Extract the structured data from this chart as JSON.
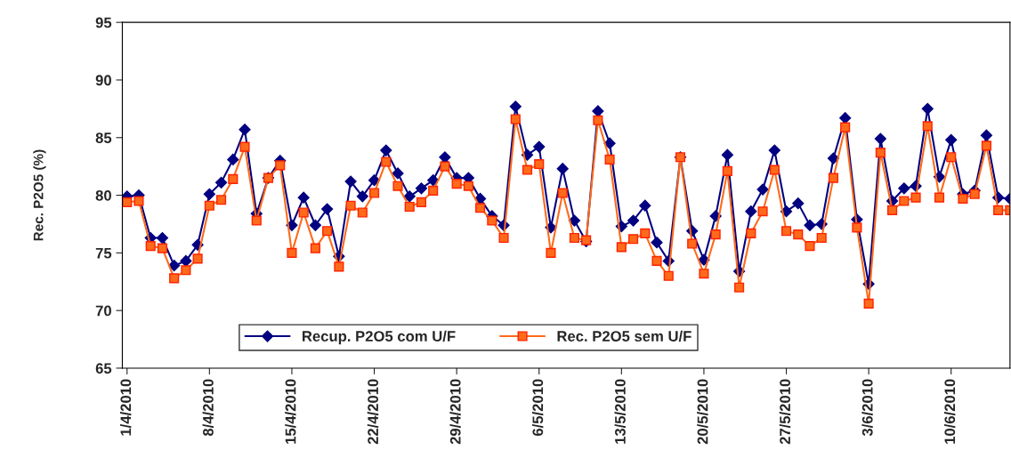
{
  "chart_data": {
    "type": "line",
    "ylabel": "Rec. P2O5 (%)",
    "categories": [
      "1/4/2010",
      null,
      null,
      null,
      null,
      null,
      null,
      "8/4/2010",
      null,
      null,
      null,
      null,
      null,
      null,
      "15/4/2010",
      null,
      null,
      null,
      null,
      null,
      null,
      "22/4/2010",
      null,
      null,
      null,
      null,
      null,
      null,
      "29/4/2010",
      null,
      null,
      null,
      null,
      null,
      null,
      "6/5/2010",
      null,
      null,
      null,
      null,
      null,
      null,
      "13/5/2010",
      null,
      null,
      null,
      null,
      null,
      null,
      "20/5/2010",
      null,
      null,
      null,
      null,
      null,
      null,
      "27/5/2010",
      null,
      null,
      null,
      null,
      null,
      null,
      "3/6/2010",
      null,
      null,
      null,
      null,
      null,
      null,
      "10/6/2010",
      null,
      null,
      null,
      null,
      null
    ],
    "series": [
      {
        "name": "Recup. P2O5 com U/F",
        "color": "#000080",
        "marker": "diamond",
        "values": [
          79.9,
          80.0,
          76.3,
          76.3,
          73.9,
          74.3,
          75.7,
          80.1,
          81.1,
          83.1,
          85.7,
          78.4,
          81.5,
          83.0,
          77.4,
          79.8,
          77.4,
          78.8,
          74.7,
          81.2,
          79.9,
          81.3,
          83.9,
          81.9,
          79.9,
          80.6,
          81.3,
          83.3,
          81.5,
          81.5,
          79.7,
          78.2,
          77.4,
          87.7,
          83.5,
          84.2,
          77.2,
          82.3,
          77.8,
          76.0,
          87.3,
          84.5,
          77.3,
          77.8,
          79.1,
          75.9,
          74.3,
          83.3,
          76.9,
          74.4,
          78.2,
          83.5,
          73.4,
          78.6,
          80.5,
          83.9,
          78.6,
          79.3,
          77.4,
          77.5,
          83.2,
          86.7,
          77.9,
          72.3,
          84.9,
          79.5,
          80.6,
          80.8,
          87.5,
          81.6,
          84.8,
          80.1,
          80.4,
          85.2,
          79.8,
          79.7
        ]
      },
      {
        "name": "Rec. P2O5 sem U/F",
        "color": "#ff6a1a",
        "marker": "square",
        "values": [
          79.4,
          79.5,
          75.6,
          75.4,
          72.8,
          73.5,
          74.5,
          79.1,
          79.6,
          81.4,
          84.2,
          77.8,
          81.5,
          82.6,
          75.0,
          78.5,
          75.4,
          76.9,
          73.8,
          79.1,
          78.5,
          80.2,
          82.9,
          80.8,
          79.0,
          79.4,
          80.4,
          82.5,
          81.0,
          80.8,
          78.9,
          77.8,
          76.3,
          86.6,
          82.2,
          82.7,
          75.0,
          80.2,
          76.3,
          76.1,
          86.5,
          83.1,
          75.5,
          76.2,
          76.7,
          74.3,
          73.0,
          83.3,
          75.8,
          73.2,
          76.6,
          82.1,
          72.0,
          76.7,
          78.6,
          82.2,
          76.9,
          76.6,
          75.6,
          76.3,
          81.5,
          85.9,
          77.2,
          70.6,
          83.7,
          78.7,
          79.5,
          79.8,
          86.0,
          79.8,
          83.3,
          79.7,
          80.1,
          84.3,
          78.7,
          78.7
        ]
      }
    ],
    "ylim": [
      65,
      95
    ],
    "yticks": [
      65,
      70,
      75,
      80,
      85,
      90,
      95
    ],
    "legend": "bottom"
  }
}
